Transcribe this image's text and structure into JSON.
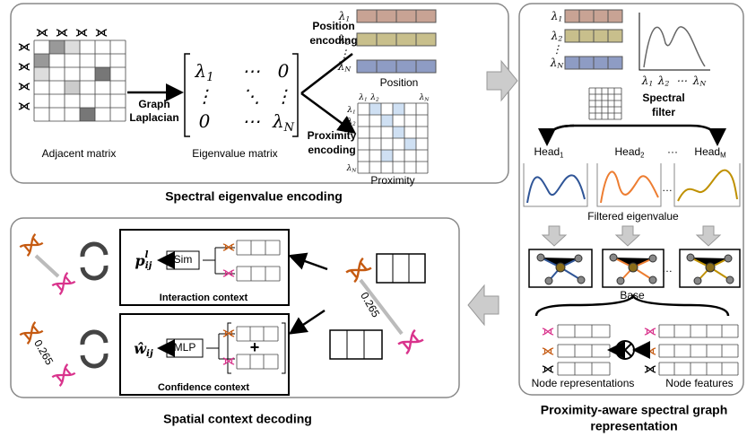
{
  "spectral_encoding": {
    "title": "Spectral eigenvalue encoding",
    "adjacent_label": "Adjacent matrix",
    "laplacian_label": [
      "Graph",
      "Laplacian"
    ],
    "eigen_label": "Eigenvalue matrix",
    "matrix": [
      [
        {
          "base": "λ",
          "sub": "1"
        },
        {
          "base": "⋯"
        },
        {
          "base": "0"
        }
      ],
      [
        {
          "base": "⋮"
        },
        {
          "base": "⋱"
        },
        {
          "base": "⋮"
        }
      ],
      [
        {
          "base": "0"
        },
        {
          "base": "⋯"
        },
        {
          "base": "λ",
          "sub": "N"
        }
      ]
    ],
    "position_encoding": [
      "Position",
      "encoding"
    ],
    "position_label": "Position",
    "proximity_encoding": [
      "Proximity",
      "encoding"
    ],
    "proximity_label": "Proximity",
    "lambdas": [
      {
        "base": "λ",
        "sub": "1"
      },
      {
        "base": "λ",
        "sub": "2"
      },
      {
        "base": "⋮"
      },
      {
        "base": "λ",
        "sub": "N"
      }
    ]
  },
  "graph_representation": {
    "title": [
      "Proximity-aware spectral graph",
      "representation"
    ],
    "spectral_filter": [
      "Spectral",
      "filter"
    ],
    "lambdas": [
      {
        "base": "λ",
        "sub": "1"
      },
      {
        "base": "λ",
        "sub": "2"
      },
      {
        "base": "⋮"
      },
      {
        "base": "λ",
        "sub": "N"
      }
    ],
    "plot_axis": [
      {
        "base": "λ",
        "sub": "1"
      },
      {
        "base": "λ",
        "sub": "2"
      },
      {
        "base": "⋯"
      },
      {
        "base": "λ",
        "sub": "N"
      }
    ],
    "heads": [
      {
        "base": "Head",
        "sub": "1"
      },
      {
        "base": "Head",
        "sub": "2"
      },
      {
        "base": "···"
      },
      {
        "base": "Head",
        "sub": "M"
      }
    ],
    "filtered_label": "Filtered eigenvalue",
    "base_label": "Base",
    "node_representations": "Node representations",
    "node_features": "Node features"
  },
  "context_decoding": {
    "title": "Spatial context decoding",
    "sim": "Sim",
    "mlp": "MLP",
    "interaction_context": "Interaction context",
    "confidence_context": "Confidence context",
    "p_symbol": {
      "base": "p",
      "sub": "ij",
      "sup": "l"
    },
    "w_symbol": {
      "base": "ŵ",
      "sub": "ij"
    },
    "distance_right": "0.265",
    "distance_left": "0.265",
    "plus": "+"
  }
}
